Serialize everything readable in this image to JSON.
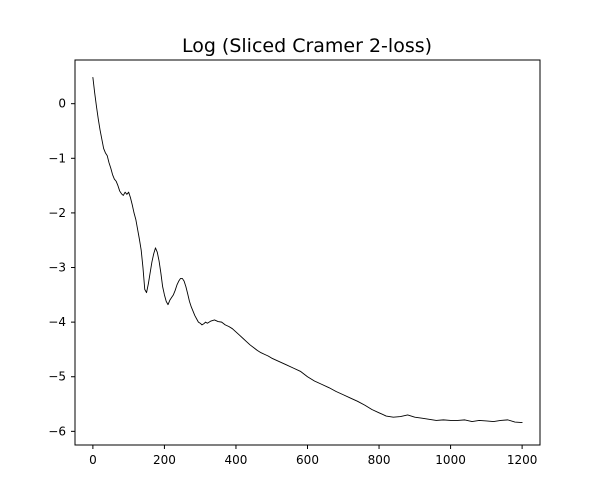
{
  "chart_data": {
    "type": "line",
    "title": "Log (Sliced Cramer 2-loss)",
    "xlabel": "",
    "ylabel": "",
    "xlim": [
      -50,
      1250
    ],
    "ylim": [
      -6.25,
      0.8
    ],
    "xticks": [
      0,
      200,
      400,
      600,
      800,
      1000,
      1200
    ],
    "yticks": [
      0,
      -1,
      -2,
      -3,
      -4,
      -5,
      -6
    ],
    "grid": false,
    "legend": "none",
    "line_color": "#000000",
    "series": [
      {
        "x": [
          0,
          5,
          10,
          15,
          20,
          25,
          30,
          35,
          40,
          45,
          50,
          55,
          60,
          65,
          70,
          75,
          80,
          85,
          90,
          95,
          100,
          105,
          110,
          115,
          120,
          125,
          130,
          135,
          140,
          145,
          150,
          155,
          160,
          165,
          170,
          175,
          180,
          185,
          190,
          195,
          200,
          205,
          210,
          215,
          220,
          225,
          230,
          235,
          240,
          245,
          250,
          255,
          260,
          265,
          270,
          275,
          280,
          285,
          290,
          295,
          300,
          305,
          310,
          315,
          320,
          325,
          330,
          340,
          350,
          360,
          370,
          380,
          390,
          400,
          410,
          420,
          430,
          440,
          450,
          460,
          470,
          480,
          490,
          500,
          520,
          540,
          560,
          580,
          600,
          620,
          640,
          660,
          680,
          700,
          720,
          740,
          760,
          780,
          800,
          820,
          840,
          860,
          880,
          900,
          920,
          940,
          960,
          980,
          1000,
          1020,
          1040,
          1060,
          1080,
          1100,
          1120,
          1140,
          1160,
          1180,
          1200
        ],
        "y": [
          0.48,
          0.2,
          -0.05,
          -0.28,
          -0.48,
          -0.65,
          -0.82,
          -0.9,
          -0.95,
          -1.08,
          -1.18,
          -1.3,
          -1.38,
          -1.42,
          -1.5,
          -1.6,
          -1.65,
          -1.68,
          -1.62,
          -1.66,
          -1.62,
          -1.72,
          -1.85,
          -2.0,
          -2.12,
          -2.3,
          -2.48,
          -2.68,
          -3.0,
          -3.4,
          -3.46,
          -3.3,
          -3.1,
          -2.9,
          -2.75,
          -2.64,
          -2.72,
          -2.88,
          -3.1,
          -3.35,
          -3.5,
          -3.62,
          -3.68,
          -3.6,
          -3.55,
          -3.5,
          -3.42,
          -3.32,
          -3.25,
          -3.2,
          -3.2,
          -3.25,
          -3.35,
          -3.48,
          -3.62,
          -3.72,
          -3.8,
          -3.88,
          -3.94,
          -4.0,
          -4.02,
          -4.05,
          -4.03,
          -4.0,
          -4.02,
          -4.0,
          -3.98,
          -3.96,
          -3.99,
          -4.0,
          -4.05,
          -4.08,
          -4.12,
          -4.18,
          -4.24,
          -4.3,
          -4.36,
          -4.42,
          -4.47,
          -4.52,
          -4.56,
          -4.59,
          -4.62,
          -4.66,
          -4.72,
          -4.78,
          -4.84,
          -4.9,
          -5.0,
          -5.08,
          -5.14,
          -5.2,
          -5.27,
          -5.33,
          -5.39,
          -5.45,
          -5.52,
          -5.6,
          -5.66,
          -5.72,
          -5.74,
          -5.73,
          -5.7,
          -5.74,
          -5.76,
          -5.78,
          -5.8,
          -5.79,
          -5.8,
          -5.8,
          -5.79,
          -5.82,
          -5.8,
          -5.81,
          -5.82,
          -5.8,
          -5.79,
          -5.83,
          -5.84
        ]
      }
    ]
  }
}
